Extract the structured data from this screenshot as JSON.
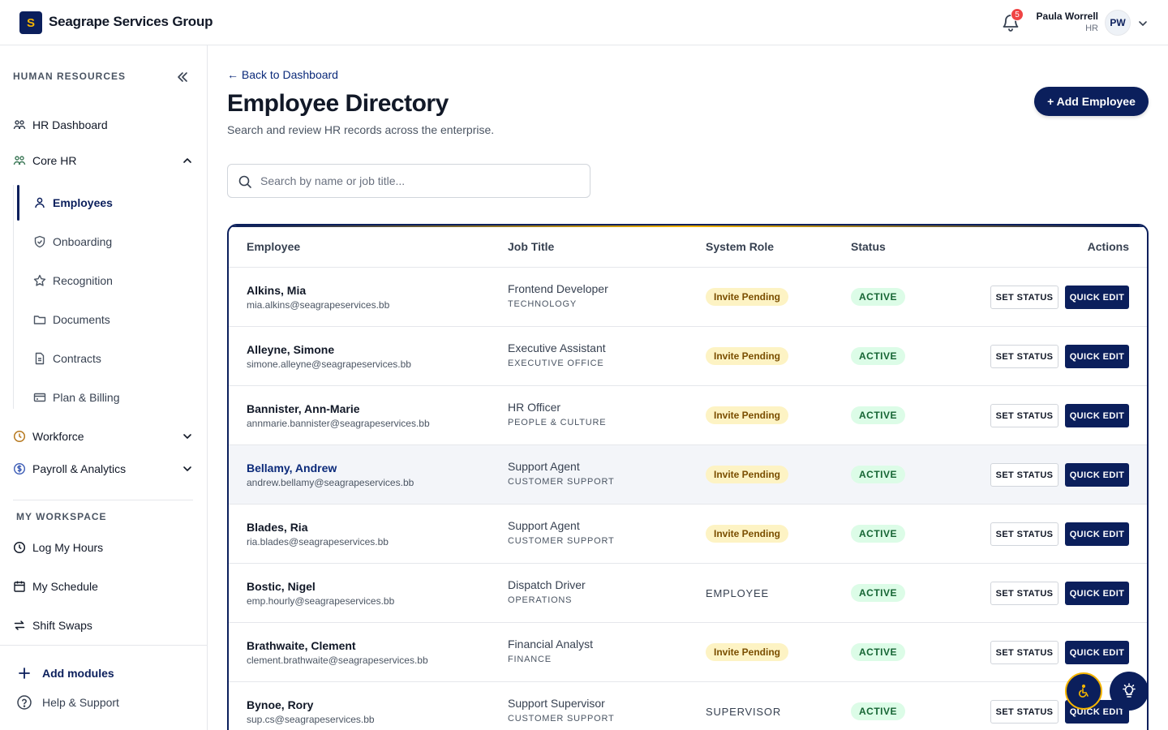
{
  "app": {
    "logo_letter": "S",
    "brand": "Seagrape Services Group",
    "notifications_count": "5",
    "user_name": "Paula Worrell",
    "user_role": "HR",
    "user_initials": "PW"
  },
  "sidebar": {
    "section_title": "HUMAN RESOURCES",
    "hr_dashboard": "HR Dashboard",
    "core_hr": "Core HR",
    "core_items": [
      "Employees",
      "Onboarding",
      "Recognition",
      "Documents",
      "Contracts",
      "Plan & Billing"
    ],
    "workforce": "Workforce",
    "payroll": "Payroll & Analytics",
    "workspace_title": "MY WORKSPACE",
    "workspace_items": [
      "Log My Hours",
      "My Schedule",
      "Shift Swaps"
    ],
    "add_modules": "Add modules",
    "help": "Help & Support"
  },
  "main": {
    "back_link": "← Back to Dashboard",
    "title": "Employee Directory",
    "subtitle": "Search and review HR records across the enterprise.",
    "add_button": "+ Add Employee",
    "search_placeholder": "Search by name or job title..."
  },
  "table": {
    "headers": [
      "Employee",
      "Job Title",
      "System Role",
      "Status",
      "Actions"
    ],
    "set_status_label": "SET STATUS",
    "quick_edit_label": "QUICK EDIT",
    "rows": [
      {
        "name": "Alkins, Mia",
        "email": "mia.alkins@seagrapeservices.bb",
        "job": "Frontend Developer",
        "dept": "TECHNOLOGY",
        "role": "Invite Pending",
        "role_pill": true,
        "status": "ACTIVE"
      },
      {
        "name": "Alleyne, Simone",
        "email": "simone.alleyne@seagrapeservices.bb",
        "job": "Executive Assistant",
        "dept": "EXECUTIVE OFFICE",
        "role": "Invite Pending",
        "role_pill": true,
        "status": "ACTIVE"
      },
      {
        "name": "Bannister, Ann-Marie",
        "email": "annmarie.bannister@seagrapeservices.bb",
        "job": "HR Officer",
        "dept": "PEOPLE & CULTURE",
        "role": "Invite Pending",
        "role_pill": true,
        "status": "ACTIVE"
      },
      {
        "name": "Bellamy, Andrew",
        "email": "andrew.bellamy@seagrapeservices.bb",
        "job": "Support Agent",
        "dept": "CUSTOMER SUPPORT",
        "role": "Invite Pending",
        "role_pill": true,
        "status": "ACTIVE",
        "highlight": true
      },
      {
        "name": "Blades, Ria",
        "email": "ria.blades@seagrapeservices.bb",
        "job": "Support Agent",
        "dept": "CUSTOMER SUPPORT",
        "role": "Invite Pending",
        "role_pill": true,
        "status": "ACTIVE"
      },
      {
        "name": "Bostic, Nigel",
        "email": "emp.hourly@seagrapeservices.bb",
        "job": "Dispatch Driver",
        "dept": "OPERATIONS",
        "role": "EMPLOYEE",
        "role_pill": false,
        "status": "ACTIVE"
      },
      {
        "name": "Brathwaite, Clement",
        "email": "clement.brathwaite@seagrapeservices.bb",
        "job": "Financial Analyst",
        "dept": "FINANCE",
        "role": "Invite Pending",
        "role_pill": true,
        "status": "ACTIVE"
      },
      {
        "name": "Bynoe, Rory",
        "email": "sup.cs@seagrapeservices.bb",
        "job": "Support Supervisor",
        "dept": "CUSTOMER SUPPORT",
        "role": "SUPERVISOR",
        "role_pill": false,
        "status": "ACTIVE"
      }
    ]
  },
  "icons": {
    "bell": "bell-icon",
    "accessibility": "accessibility-icon",
    "idea": "lightbulb-icon"
  },
  "colors": {
    "primary": "#0b1f5c",
    "accent": "#f4b400",
    "pending_bg": "#fdf3c4",
    "active_bg": "#dcfce7"
  }
}
